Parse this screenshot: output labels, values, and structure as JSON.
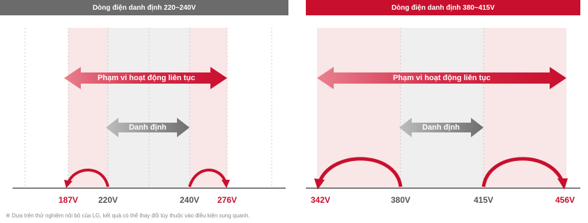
{
  "left_panel": {
    "header": "Dòng điện danh định 220~240V",
    "continuous_label": "Phạm vi hoạt động liên tục",
    "rated_label": "Danh định",
    "ticks": [
      "187V",
      "220V",
      "240V",
      "276V"
    ]
  },
  "right_panel": {
    "header": "Dòng điện danh định 380~415V",
    "continuous_label": "Phạm vi hoạt động liên tục",
    "rated_label": "Danh định",
    "ticks": [
      "342V",
      "380V",
      "415V",
      "456V"
    ]
  },
  "footnote": "※ Dựa trên thử nghiệm nội bộ của LG, kết quả có thể thay đổi tùy thuộc vào điều kiện xung quanh.",
  "colors": {
    "brand_red": "#c8102e",
    "gray_header": "#6b6b6b",
    "pink_zone": "#f9e6e6",
    "gray_zone": "#efefef"
  }
}
